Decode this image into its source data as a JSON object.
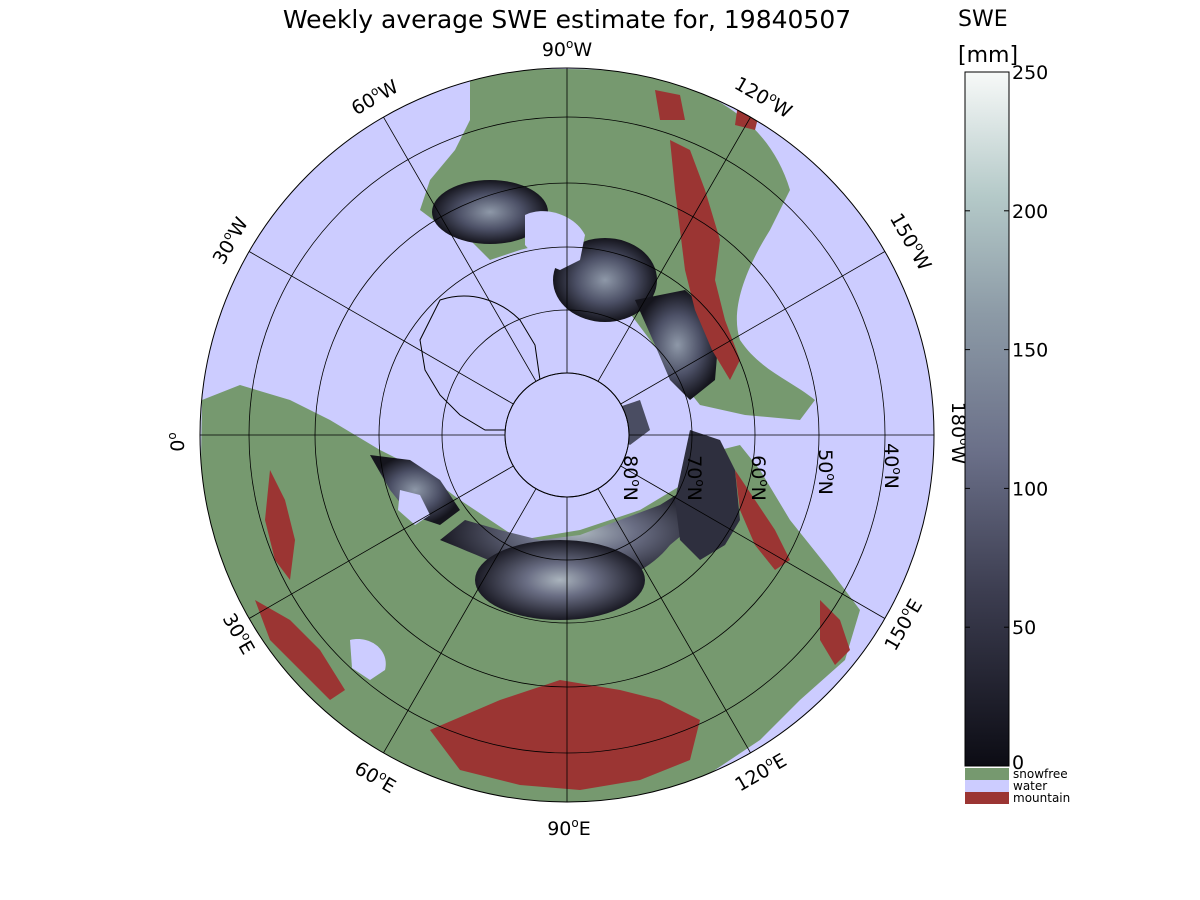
{
  "title": "Weekly average SWE estimate for, 19840507",
  "colors": {
    "water": "#ccccff",
    "snowfree": "#76996f",
    "mountain": "#9b3533",
    "swe_low": "#0c0c14",
    "swe_mid": "#565a73",
    "swe_high": "#f4f7f6"
  },
  "longitude_labels": [
    {
      "deg": "90",
      "hemi": "W"
    },
    {
      "deg": "120",
      "hemi": "W"
    },
    {
      "deg": "150",
      "hemi": "W"
    },
    {
      "deg": "180",
      "hemi": "W"
    },
    {
      "deg": "150",
      "hemi": "E"
    },
    {
      "deg": "120",
      "hemi": "E"
    },
    {
      "deg": "90",
      "hemi": "E"
    },
    {
      "deg": "60",
      "hemi": "E"
    },
    {
      "deg": "30",
      "hemi": "E"
    },
    {
      "deg": "0",
      "hemi": ""
    },
    {
      "deg": "30",
      "hemi": "W"
    },
    {
      "deg": "60",
      "hemi": "W"
    }
  ],
  "latitude_labels": [
    {
      "deg": "80",
      "hemi": "N"
    },
    {
      "deg": "70",
      "hemi": "N"
    },
    {
      "deg": "60",
      "hemi": "N"
    },
    {
      "deg": "50",
      "hemi": "N"
    },
    {
      "deg": "40",
      "hemi": "N"
    }
  ],
  "colorbar": {
    "title_line1": "SWE",
    "title_line2": "[mm]",
    "min": 0,
    "max": 250,
    "ticks": [
      "0",
      "50",
      "100",
      "150",
      "200",
      "250"
    ]
  },
  "legend": [
    {
      "label": "snowfree",
      "color": "#76996f"
    },
    {
      "label": "water",
      "color": "#ccccff"
    },
    {
      "label": "mountain",
      "color": "#9b3533"
    }
  ]
}
